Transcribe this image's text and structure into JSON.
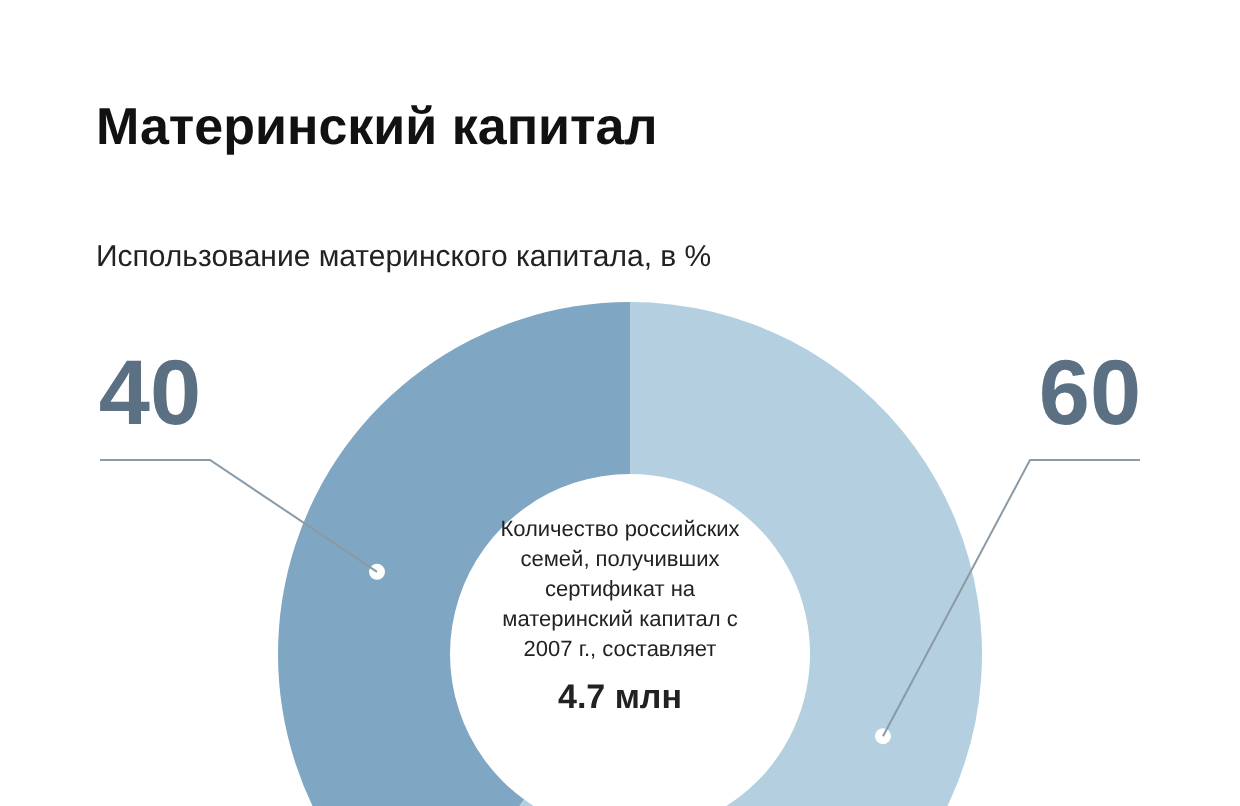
{
  "chart_data": {
    "type": "donut",
    "title": "Материнский капитал",
    "subtitle": "Использование материнского капитала, в %",
    "categories": [
      null,
      null
    ],
    "values": [
      40,
      60
    ],
    "colors": [
      "#7fa6c3",
      "#b4cfe0"
    ],
    "data_labels": true,
    "annotations": [
      "Количество российских семей, получивших сертификат на материнский капитал с 2007 г., составляет",
      "4.7 млн"
    ]
  }
}
